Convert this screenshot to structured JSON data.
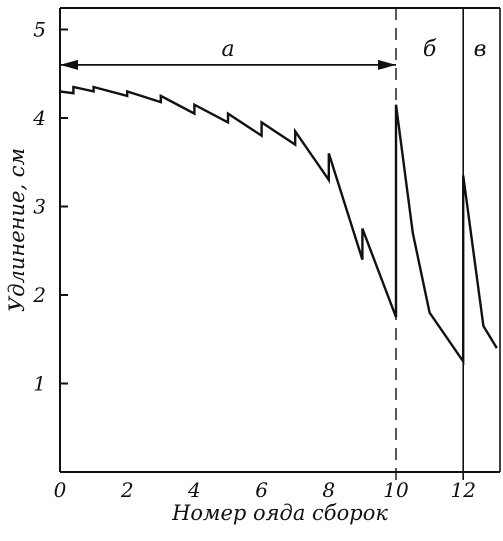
{
  "chart_data": {
    "type": "line",
    "xlabel": "Номер ояда сборок",
    "ylabel": "Удлинение, см",
    "xlim": [
      0,
      13
    ],
    "ylim": [
      0,
      5.2
    ],
    "x_ticks": [
      "0",
      "2",
      "4",
      "6",
      "8",
      "10",
      "12"
    ],
    "y_ticks": [
      "1",
      "2",
      "3",
      "4",
      "5"
    ],
    "grid": false,
    "regions": [
      {
        "label": "a",
        "x_from": 0,
        "x_to": 10,
        "divider": "none",
        "arrow": true
      },
      {
        "label": "б",
        "x_from": 10,
        "x_to": 12,
        "divider": "dashed"
      },
      {
        "label": "в",
        "x_from": 12,
        "x_to": 13,
        "divider": "solid"
      }
    ],
    "series": [
      {
        "x": [
          0,
          0.4,
          0.4,
          1,
          1,
          2,
          2,
          3,
          3,
          4,
          4,
          5,
          5,
          6,
          6,
          7,
          7,
          8,
          8,
          9,
          9,
          10,
          10,
          10.5,
          11,
          12,
          12,
          12.6,
          13
        ],
        "y": [
          4.3,
          4.28,
          4.35,
          4.3,
          4.35,
          4.25,
          4.3,
          4.18,
          4.25,
          4.05,
          4.15,
          3.95,
          4.05,
          3.8,
          3.95,
          3.7,
          3.85,
          3.3,
          3.6,
          2.4,
          2.75,
          1.75,
          4.15,
          2.7,
          1.8,
          1.25,
          3.35,
          1.65,
          1.4
        ]
      }
    ]
  }
}
